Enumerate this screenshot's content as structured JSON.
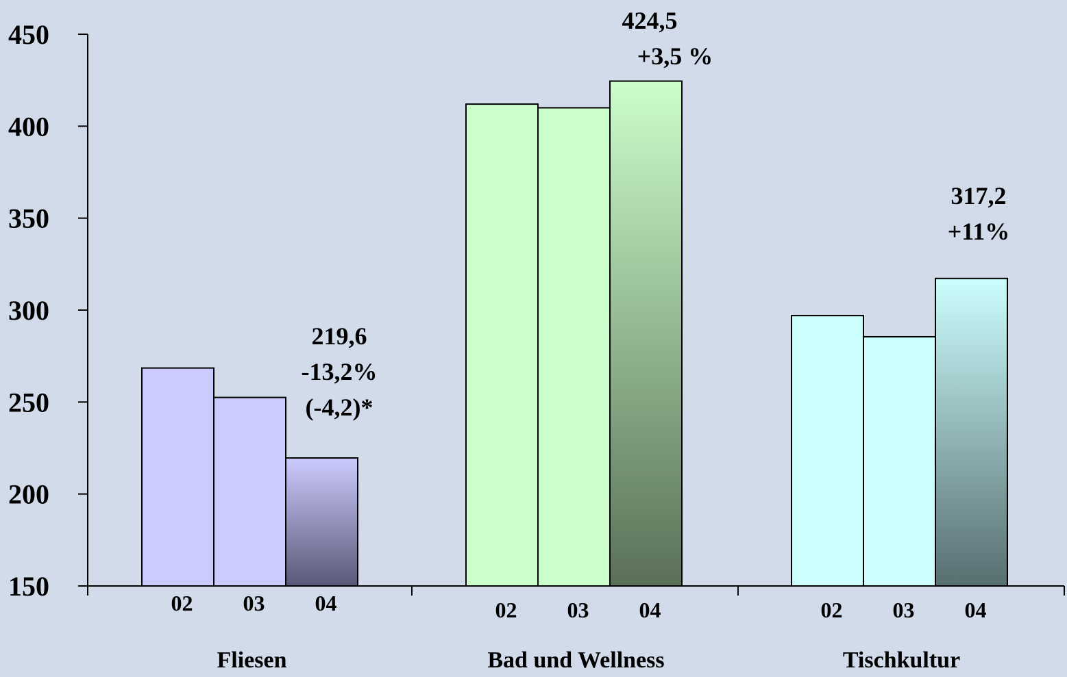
{
  "chart_data": {
    "type": "bar",
    "ylim": [
      150,
      450
    ],
    "yticks": [
      150,
      200,
      250,
      300,
      350,
      400,
      450
    ],
    "series_labels": [
      "02",
      "03",
      "04"
    ],
    "groups": [
      {
        "category": "Fliesen",
        "values": [
          268.5,
          252.5,
          219.6
        ],
        "color": "#cccbfe",
        "annotation": [
          "219,6",
          "-13,2%",
          "(-4,2)*"
        ]
      },
      {
        "category": "Bad und Wellness",
        "values": [
          412,
          410,
          424.5
        ],
        "color": "#ccfecc",
        "annotation": [
          "424,5",
          "+3,5 %"
        ]
      },
      {
        "category": "Tischkultur",
        "values": [
          297,
          285.5,
          317.2
        ],
        "color": "#ccfefe",
        "annotation": [
          "317,2",
          "+11%"
        ]
      }
    ],
    "grid": false,
    "legend": "none"
  }
}
